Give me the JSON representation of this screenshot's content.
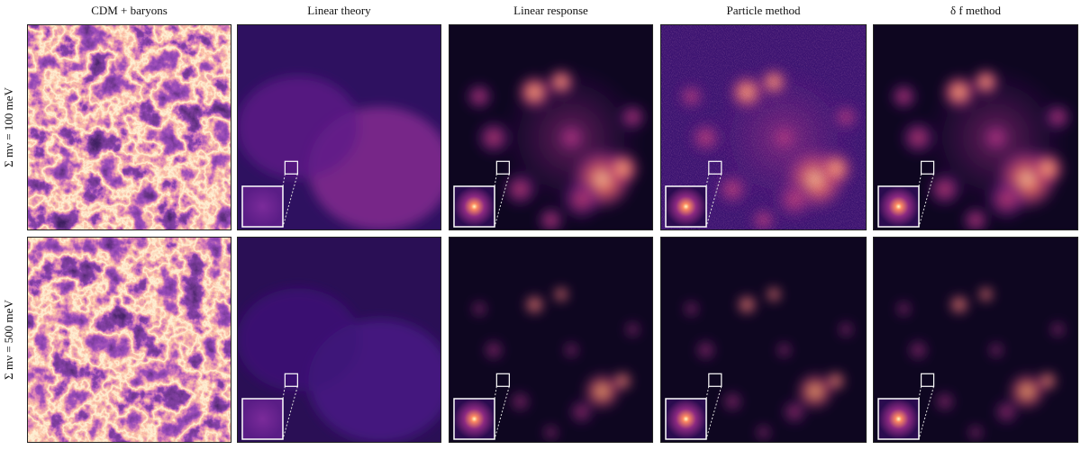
{
  "columns": [
    "CDM + baryons",
    "Linear theory",
    "Linear response",
    "Particle method",
    "δ f method"
  ],
  "rows": [
    "Σ mν = 100 meV",
    "Σ mν = 500 meV"
  ]
}
